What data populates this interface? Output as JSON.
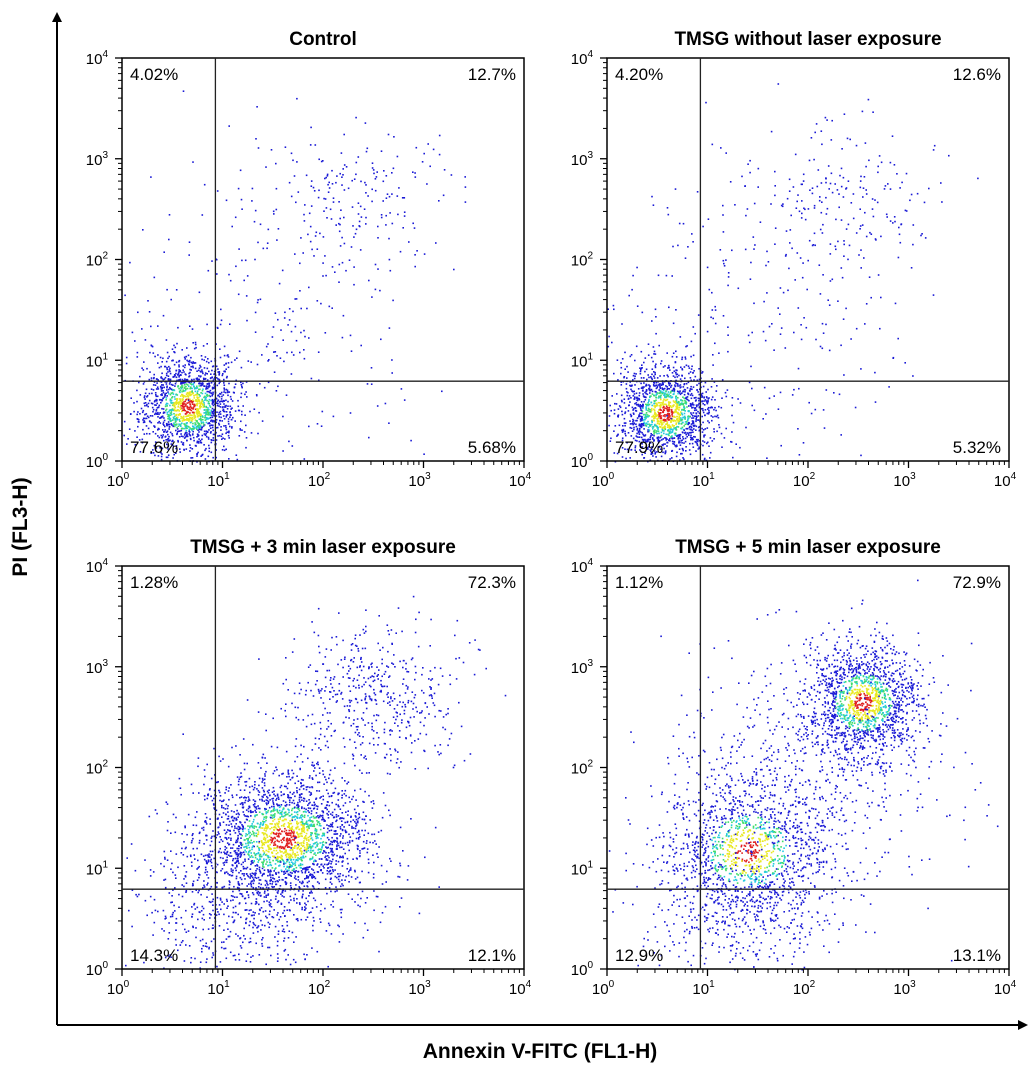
{
  "figure": {
    "xlabel": "Annexin V-FITC (FL1-H)",
    "ylabel": "PI (FL3-H)"
  },
  "colors": {
    "frame": "#000000",
    "gate": "#222222",
    "density_low": "#1a1ad6",
    "density_mid": "#22c9e0",
    "density_high": "#e8e820",
    "density_peak": "#e02020"
  },
  "chart_data": [
    {
      "type": "scatter",
      "title": "Control",
      "x_scale": "log",
      "y_scale": "log",
      "xlim": [
        1,
        10000
      ],
      "ylim": [
        1,
        10000
      ],
      "x_ticks": [
        "10^0",
        "10^1",
        "10^2",
        "10^3",
        "10^4"
      ],
      "y_ticks": [
        "10^0",
        "10^1",
        "10^2",
        "10^3",
        "10^4"
      ],
      "gate": {
        "x": 8.5,
        "y": 6.2
      },
      "quadrants": {
        "upper_left": "4.02%",
        "upper_right": "12.7%",
        "lower_left": "77.6%",
        "lower_right": "5.68%"
      },
      "populations": [
        {
          "cx": 4.5,
          "cy": 3.5,
          "sx": 0.17,
          "sy": 0.17,
          "n": 1500,
          "dense": true
        },
        {
          "cx": 230,
          "cy": 420,
          "sx": 0.35,
          "sy": 0.25,
          "n": 180,
          "dense": false
        },
        {
          "cx": 30,
          "cy": 30,
          "sx": 0.55,
          "sy": 0.55,
          "n": 260,
          "dense": false
        }
      ]
    },
    {
      "type": "scatter",
      "title": "TMSG without laser exposure",
      "x_scale": "log",
      "y_scale": "log",
      "xlim": [
        1,
        10000
      ],
      "ylim": [
        1,
        10000
      ],
      "x_ticks": [
        "10^0",
        "10^1",
        "10^2",
        "10^3",
        "10^4"
      ],
      "y_ticks": [
        "10^0",
        "10^1",
        "10^2",
        "10^3",
        "10^4"
      ],
      "gate": {
        "x": 8.5,
        "y": 6.2
      },
      "quadrants": {
        "upper_left": "4.20%",
        "upper_right": "12.6%",
        "lower_left": "77.9%",
        "lower_right": "5.32%"
      },
      "populations": [
        {
          "cx": 3.8,
          "cy": 3.0,
          "sx": 0.17,
          "sy": 0.17,
          "n": 1500,
          "dense": true
        },
        {
          "cx": 230,
          "cy": 400,
          "sx": 0.35,
          "sy": 0.25,
          "n": 180,
          "dense": false
        },
        {
          "cx": 30,
          "cy": 30,
          "sx": 0.55,
          "sy": 0.55,
          "n": 260,
          "dense": false
        }
      ]
    },
    {
      "type": "scatter",
      "title": "TMSG + 3 min laser exposure",
      "x_scale": "log",
      "y_scale": "log",
      "xlim": [
        1,
        10000
      ],
      "ylim": [
        1,
        10000
      ],
      "x_ticks": [
        "10^0",
        "10^1",
        "10^2",
        "10^3",
        "10^4"
      ],
      "y_ticks": [
        "10^0",
        "10^1",
        "10^2",
        "10^3",
        "10^4"
      ],
      "gate": {
        "x": 8.5,
        "y": 6.2
      },
      "quadrants": {
        "upper_left": "1.28%",
        "upper_right": "72.3%",
        "lower_left": "14.3%",
        "lower_right": "12.1%"
      },
      "populations": [
        {
          "cx": 40,
          "cy": 20,
          "sx": 0.3,
          "sy": 0.23,
          "n": 2300,
          "dense": true
        },
        {
          "cx": 300,
          "cy": 500,
          "sx": 0.3,
          "sy": 0.25,
          "n": 500,
          "dense": false
        },
        {
          "cx": 18,
          "cy": 3,
          "sx": 0.35,
          "sy": 0.3,
          "n": 400,
          "dense": false
        },
        {
          "cx": 5,
          "cy": 4,
          "sx": 0.25,
          "sy": 0.3,
          "n": 150,
          "dense": false
        }
      ]
    },
    {
      "type": "scatter",
      "title": "TMSG + 5 min laser exposure",
      "x_scale": "log",
      "y_scale": "log",
      "xlim": [
        1,
        10000
      ],
      "ylim": [
        1,
        10000
      ],
      "x_ticks": [
        "10^0",
        "10^1",
        "10^2",
        "10^3",
        "10^4"
      ],
      "y_ticks": [
        "10^0",
        "10^1",
        "10^2",
        "10^3",
        "10^4"
      ],
      "gate": {
        "x": 8.5,
        "y": 6.2
      },
      "quadrants": {
        "upper_left": "1.12%",
        "upper_right": "72.9%",
        "lower_left": "12.9%",
        "lower_right": "13.1%"
      },
      "populations": [
        {
          "cx": 350,
          "cy": 450,
          "sx": 0.2,
          "sy": 0.2,
          "n": 1500,
          "dense": true
        },
        {
          "cx": 25,
          "cy": 15,
          "sx": 0.28,
          "sy": 0.25,
          "n": 1300,
          "dense": true
        },
        {
          "cx": 90,
          "cy": 80,
          "sx": 0.5,
          "sy": 0.45,
          "n": 600,
          "dense": false
        },
        {
          "cx": 20,
          "cy": 3,
          "sx": 0.35,
          "sy": 0.3,
          "n": 350,
          "dense": false
        }
      ]
    }
  ]
}
